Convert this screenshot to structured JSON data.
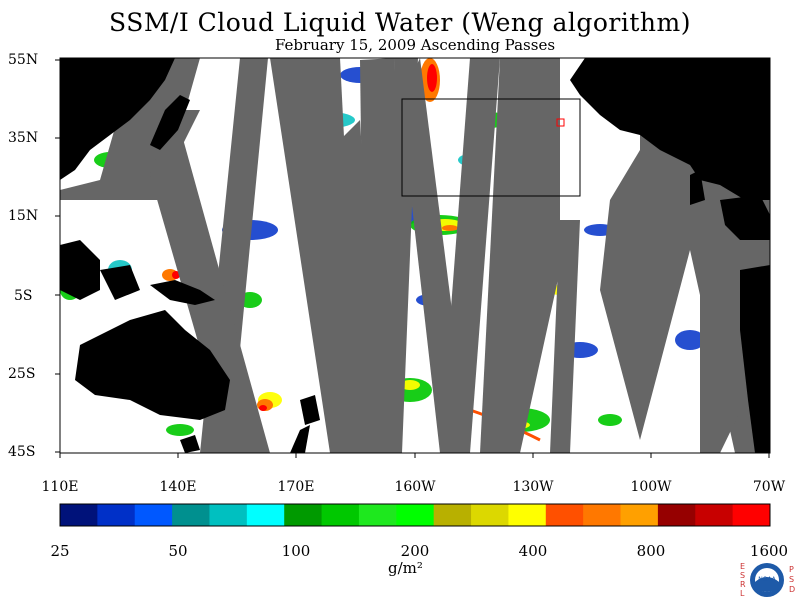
{
  "header": {
    "title": "SSM/I Cloud Liquid Water (Weng algorithm)",
    "subtitle": "February 15, 2009  Ascending Passes"
  },
  "map": {
    "lat_labels": [
      "55N",
      "35N",
      "15N",
      "5S",
      "25S",
      "45S"
    ],
    "lon_labels": [
      "110E",
      "140E",
      "170E",
      "160W",
      "130W",
      "100W",
      "70W"
    ],
    "colors": {
      "land": "#000000",
      "no_data": "#666666",
      "ocean_clear": "#ffffff"
    }
  },
  "colorbar": {
    "labels": [
      "25",
      "50",
      "100",
      "200",
      "400",
      "800",
      "1600"
    ],
    "units": "g/m²",
    "colors": [
      "#00127a",
      "#0030c8",
      "#0058ff",
      "#00908f",
      "#00c0c0",
      "#00ffff",
      "#009a00",
      "#00c800",
      "#1ee81e",
      "#00ff00",
      "#b8b000",
      "#dcd800",
      "#ffff00",
      "#ff5000",
      "#ff7800",
      "#ffa000",
      "#960000",
      "#c80000",
      "#ff0000"
    ]
  },
  "logo": {
    "left_text": "ESRL",
    "right_text": "PSD",
    "center_text": "NOAA"
  }
}
